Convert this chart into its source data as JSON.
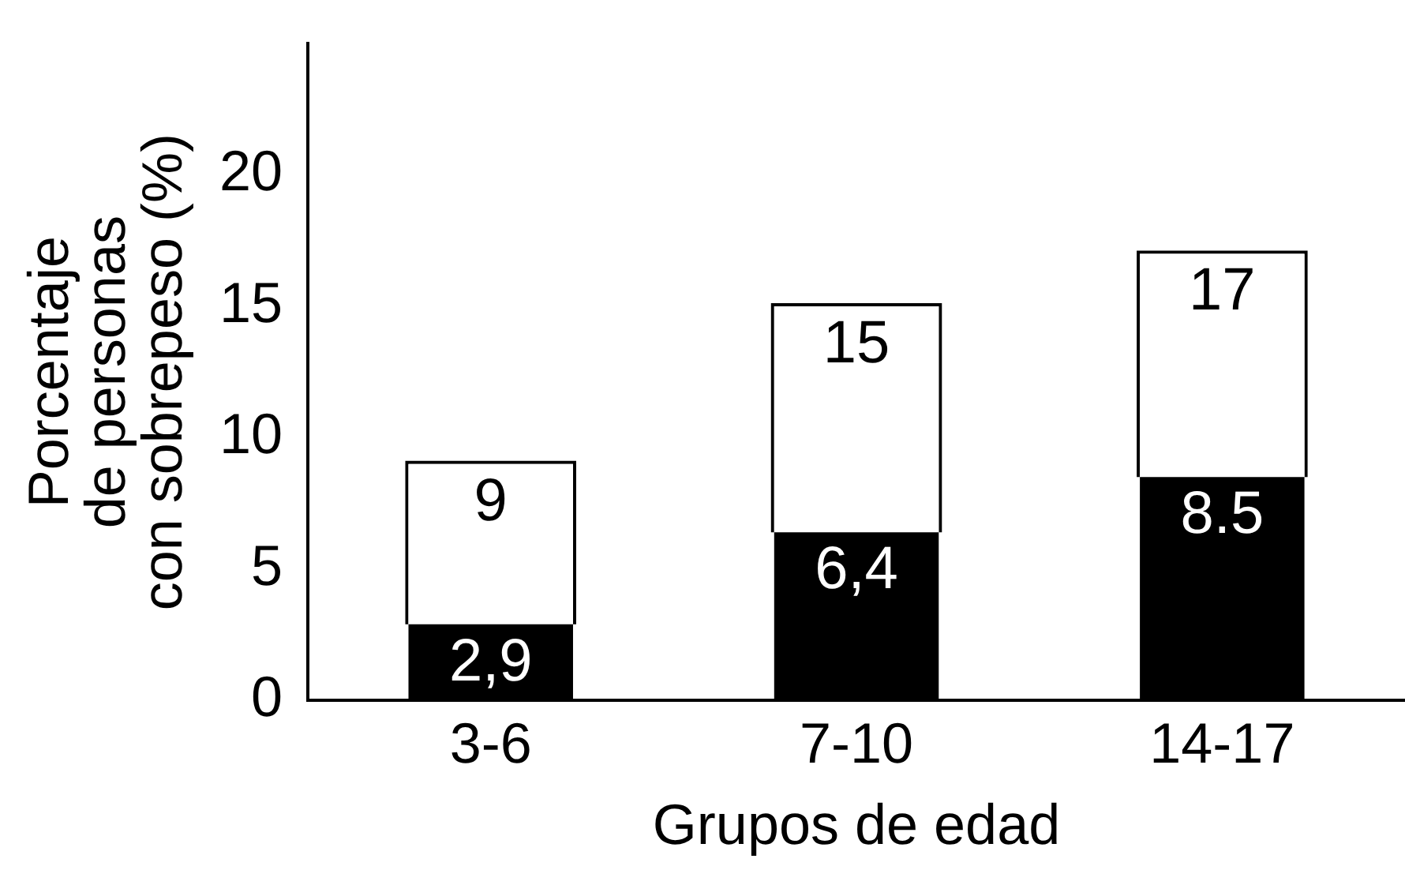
{
  "chart_data": {
    "type": "bar",
    "xlabel": "Grupos de edad",
    "ylabel": "Porcentaje\nde personas\ncon sobrepeso (%)",
    "categories": [
      "3-6",
      "7-10",
      "14-17"
    ],
    "stacked": true,
    "series": [
      {
        "color": "#000000",
        "values": [
          2.9,
          6.4,
          8.5
        ],
        "value_labels": [
          "2,9",
          "6,4",
          "8.5"
        ]
      },
      {
        "color": "#ffffff",
        "values": [
          6.1,
          8.6,
          8.5
        ]
      }
    ],
    "totals": [
      "9",
      "15",
      "17"
    ],
    "ylim": [
      0,
      25
    ],
    "yticks": [
      0,
      5,
      10,
      15,
      20
    ],
    "grid": false,
    "legend": false
  }
}
